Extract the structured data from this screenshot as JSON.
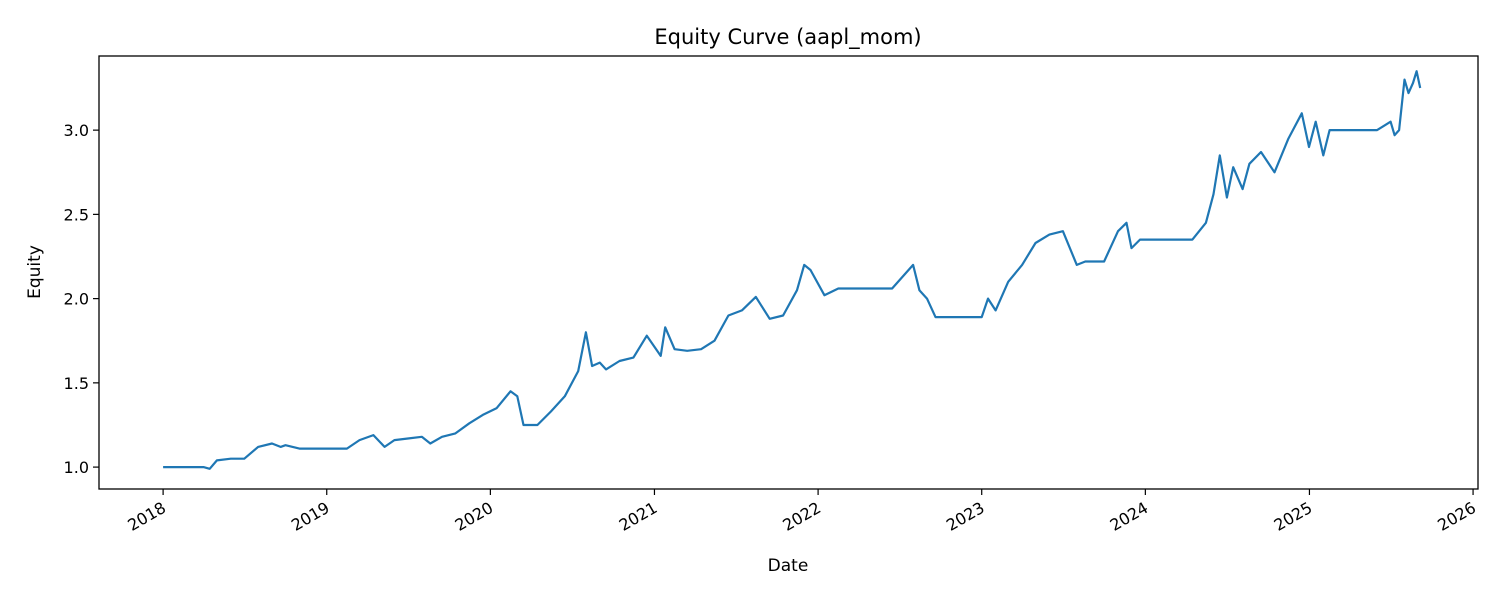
{
  "chart_data": {
    "type": "line",
    "title": "Equity Curve (aapl_mom)",
    "xlabel": "Date",
    "ylabel": "Equity",
    "x_ticks": [
      "2018",
      "2019",
      "2020",
      "2021",
      "2022",
      "2023",
      "2024",
      "2025",
      "2026"
    ],
    "y_ticks": [
      "1.0",
      "1.5",
      "2.0",
      "2.5",
      "3.0"
    ],
    "xlim": [
      "2017-08-11",
      "2026-01-12"
    ],
    "ylim": [
      0.87,
      3.44
    ],
    "grid": false,
    "series": [
      {
        "color": "#1f77b4",
        "x": [
          "2018-01-01",
          "2018-04-01",
          "2018-04-15",
          "2018-05-01",
          "2018-06-01",
          "2018-07-01",
          "2018-08-01",
          "2018-09-01",
          "2018-09-20",
          "2018-10-01",
          "2018-11-01",
          "2019-01-01",
          "2019-02-15",
          "2019-03-15",
          "2019-04-15",
          "2019-05-10",
          "2019-06-01",
          "2019-07-01",
          "2019-08-01",
          "2019-08-20",
          "2019-09-15",
          "2019-10-15",
          "2019-11-15",
          "2019-12-15",
          "2020-01-15",
          "2020-02-15",
          "2020-03-01",
          "2020-03-15",
          "2020-04-15",
          "2020-05-15",
          "2020-06-15",
          "2020-07-15",
          "2020-08-01",
          "2020-08-15",
          "2020-09-01",
          "2020-09-15",
          "2020-10-15",
          "2020-11-15",
          "2020-12-15",
          "2021-01-15",
          "2021-01-25",
          "2021-02-15",
          "2021-03-15",
          "2021-04-15",
          "2021-05-15",
          "2021-06-15",
          "2021-07-15",
          "2021-08-15",
          "2021-09-15",
          "2021-10-15",
          "2021-11-15",
          "2021-12-01",
          "2021-12-15",
          "2022-01-15",
          "2022-02-15",
          "2022-03-15",
          "2022-04-15",
          "2022-06-15",
          "2022-08-01",
          "2022-08-15",
          "2022-09-01",
          "2022-09-20",
          "2022-10-01",
          "2022-11-01",
          "2022-12-01",
          "2023-01-01",
          "2023-01-15",
          "2023-02-01",
          "2023-03-01",
          "2023-04-01",
          "2023-05-01",
          "2023-06-01",
          "2023-07-01",
          "2023-08-01",
          "2023-08-20",
          "2023-09-01",
          "2023-10-01",
          "2023-11-01",
          "2023-11-20",
          "2023-12-01",
          "2023-12-20",
          "2024-01-15",
          "2024-02-15",
          "2024-03-15",
          "2024-04-15",
          "2024-05-15",
          "2024-06-01",
          "2024-06-15",
          "2024-07-01",
          "2024-07-15",
          "2024-08-05",
          "2024-08-20",
          "2024-09-15",
          "2024-10-15",
          "2024-11-15",
          "2024-12-15",
          "2024-12-31",
          "2025-01-15",
          "2025-02-01",
          "2025-02-15",
          "2025-03-01",
          "2025-04-01",
          "2025-05-01",
          "2025-06-01",
          "2025-07-01",
          "2025-07-10",
          "2025-07-20",
          "2025-08-01",
          "2025-08-10",
          "2025-08-20",
          "2025-08-28",
          "2025-09-05"
        ],
        "y": [
          1.0,
          1.0,
          0.99,
          1.04,
          1.05,
          1.05,
          1.12,
          1.14,
          1.12,
          1.13,
          1.11,
          1.11,
          1.11,
          1.16,
          1.19,
          1.12,
          1.16,
          1.17,
          1.18,
          1.14,
          1.18,
          1.2,
          1.26,
          1.31,
          1.35,
          1.45,
          1.42,
          1.25,
          1.25,
          1.33,
          1.42,
          1.57,
          1.8,
          1.6,
          1.62,
          1.58,
          1.63,
          1.65,
          1.78,
          1.66,
          1.83,
          1.7,
          1.69,
          1.7,
          1.75,
          1.9,
          1.93,
          2.01,
          1.88,
          1.9,
          2.05,
          2.2,
          2.17,
          2.02,
          2.06,
          2.06,
          2.06,
          2.06,
          2.2,
          2.05,
          2.0,
          1.89,
          1.89,
          1.89,
          1.89,
          1.89,
          2.0,
          1.93,
          2.1,
          2.2,
          2.33,
          2.38,
          2.4,
          2.2,
          2.22,
          2.22,
          2.22,
          2.4,
          2.45,
          2.3,
          2.35,
          2.35,
          2.35,
          2.35,
          2.35,
          2.45,
          2.62,
          2.85,
          2.6,
          2.78,
          2.65,
          2.8,
          2.87,
          2.75,
          2.95,
          3.1,
          2.9,
          3.05,
          2.85,
          3.0,
          3.0,
          3.0,
          3.0,
          3.0,
          3.05,
          2.97,
          3.0,
          3.3,
          3.22,
          3.28,
          3.35,
          3.25
        ]
      }
    ]
  }
}
